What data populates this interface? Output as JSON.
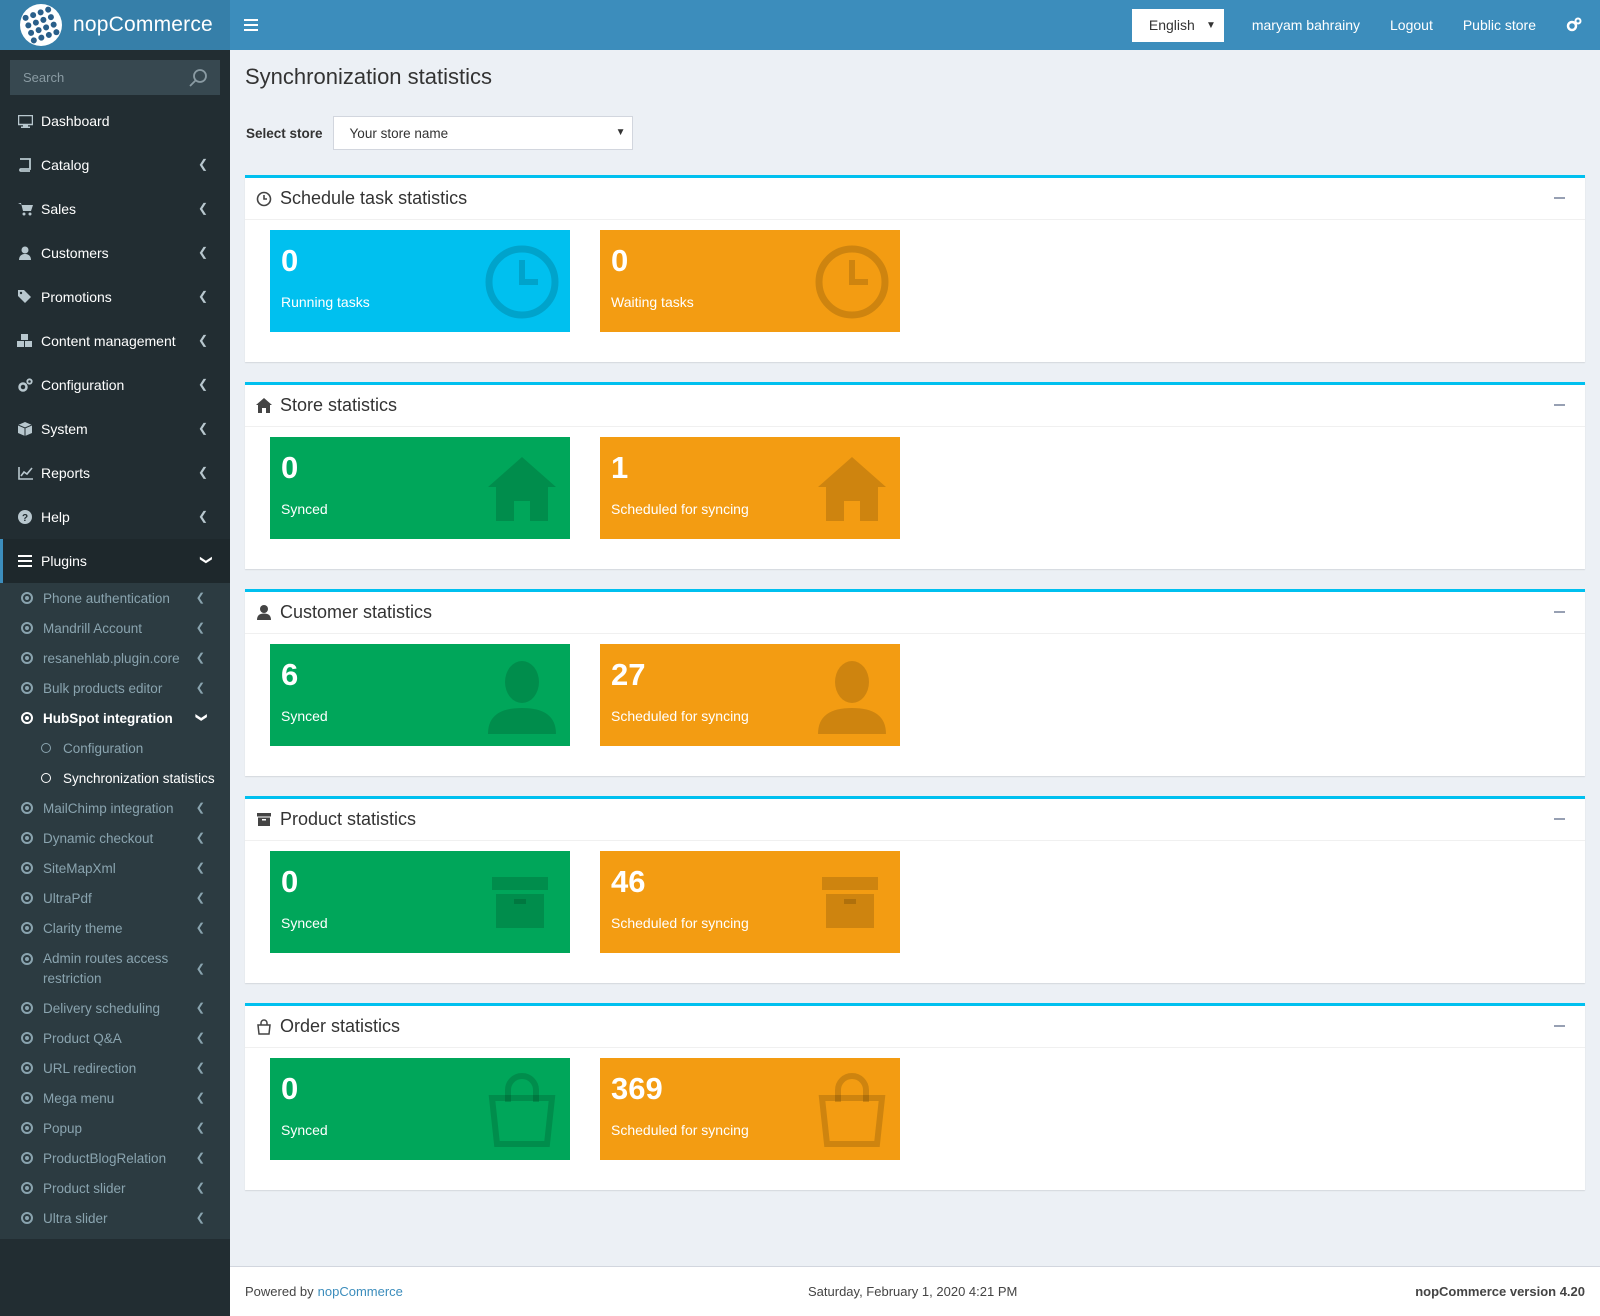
{
  "brand": {
    "name": "nopCommerce"
  },
  "header": {
    "language": "English",
    "user": "maryam bahrainy",
    "logout": "Logout",
    "public_store": "Public store"
  },
  "sidebar": {
    "search_placeholder": "Search",
    "items": [
      {
        "label": "Dashboard",
        "icon": "desktop-icon"
      },
      {
        "label": "Catalog",
        "icon": "book-icon"
      },
      {
        "label": "Sales",
        "icon": "cart-icon"
      },
      {
        "label": "Customers",
        "icon": "user-icon"
      },
      {
        "label": "Promotions",
        "icon": "tags-icon"
      },
      {
        "label": "Content management",
        "icon": "cubes-icon"
      },
      {
        "label": "Configuration",
        "icon": "gears-icon"
      },
      {
        "label": "System",
        "icon": "cube-icon"
      },
      {
        "label": "Reports",
        "icon": "line-chart-icon"
      },
      {
        "label": "Help",
        "icon": "question-icon"
      }
    ],
    "plugins_label": "Plugins",
    "plugins": [
      "Phone authentication",
      "Mandrill Account",
      "resanehlab.plugin.core",
      "Bulk products editor",
      "HubSpot integration",
      "MailChimp integration",
      "Dynamic checkout",
      "SiteMapXml",
      "UltraPdf",
      "Clarity theme",
      "Admin routes access restriction",
      "Delivery scheduling",
      "Product Q&A",
      "URL redirection",
      "Mega menu",
      "Popup",
      "ProductBlogRelation",
      "Product slider",
      "Ultra slider"
    ],
    "hubspot_sub": [
      "Configuration",
      "Synchronization statistics"
    ]
  },
  "page": {
    "title": "Synchronization statistics",
    "select_store_label": "Select store",
    "store_value": "Your store name"
  },
  "panels": [
    {
      "title": "Schedule task statistics",
      "icon": "clock-icon",
      "tiles": [
        {
          "value": "0",
          "label": "Running tasks",
          "color": "#00c0ef"
        },
        {
          "value": "0",
          "label": "Waiting tasks",
          "color": "#f39c12"
        }
      ]
    },
    {
      "title": "Store statistics",
      "icon": "home-icon",
      "tiles": [
        {
          "value": "0",
          "label": "Synced",
          "color": "#00a65a"
        },
        {
          "value": "1",
          "label": "Scheduled for syncing",
          "color": "#f39c12"
        }
      ]
    },
    {
      "title": "Customer statistics",
      "icon": "user-icon",
      "tiles": [
        {
          "value": "6",
          "label": "Synced",
          "color": "#00a65a"
        },
        {
          "value": "27",
          "label": "Scheduled for syncing",
          "color": "#f39c12"
        }
      ]
    },
    {
      "title": "Product statistics",
      "icon": "archive-icon",
      "tiles": [
        {
          "value": "0",
          "label": "Synced",
          "color": "#00a65a"
        },
        {
          "value": "46",
          "label": "Scheduled for syncing",
          "color": "#f39c12"
        }
      ]
    },
    {
      "title": "Order statistics",
      "icon": "shopping-bag-icon",
      "tiles": [
        {
          "value": "0",
          "label": "Synced",
          "color": "#00a65a"
        },
        {
          "value": "369",
          "label": "Scheduled for syncing",
          "color": "#f39c12"
        }
      ]
    }
  ],
  "footer": {
    "powered_by": "Powered by",
    "powered_link": "nopCommerce",
    "datetime": "Saturday, February 1, 2020 4:21 PM",
    "version": "nopCommerce version 4.20"
  }
}
